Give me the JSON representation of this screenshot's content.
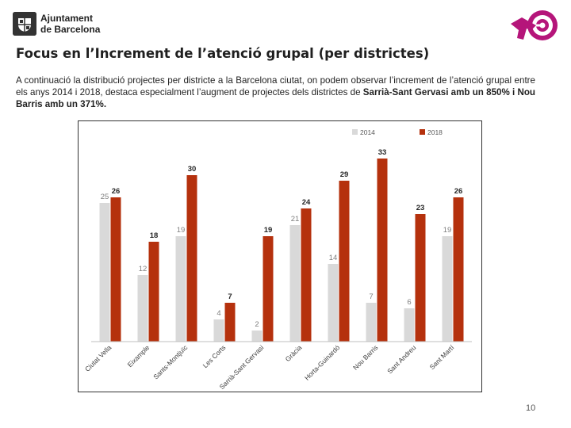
{
  "header": {
    "org_line1": "Ajuntament",
    "org_line2": "de Barcelona"
  },
  "title": "Focus en l’Increment de l’atenció grupal (per districtes)",
  "intro": {
    "text_before": "A continuació la distribució projectes per districte a la Barcelona ciutat, on podem observar l’increment de l’atenció grupal entre els anys 2014 i 2018, destaca especialment l’augment de projectes dels districtes de ",
    "highlight": "Sarrià-Sant Gervasi amb un 850% i Nou Barris amb un 371%."
  },
  "colors": {
    "series_2014": "#d9d9d9",
    "series_2018": "#b5310d",
    "brand_magenta": "#b5157a"
  },
  "chart_data": {
    "type": "bar",
    "title": "",
    "xlabel": "",
    "ylabel": "",
    "ylim": [
      0,
      35
    ],
    "grid": false,
    "legend_position": "top-right",
    "categories": [
      "Ciutat Vella",
      "Eixample",
      "Sants-Montjuïc",
      "Les Corts",
      "Sarrià-Sant Gervasi",
      "Gràcia",
      "Horta-Guinardó",
      "Nou Barris",
      "Sant Andreu",
      "Sant Martí"
    ],
    "series": [
      {
        "name": "2014",
        "values": [
          25,
          12,
          19,
          4,
          2,
          21,
          14,
          7,
          6,
          19
        ]
      },
      {
        "name": "2018",
        "values": [
          26,
          18,
          30,
          7,
          19,
          24,
          29,
          33,
          23,
          26
        ]
      }
    ]
  },
  "page_number": "10"
}
